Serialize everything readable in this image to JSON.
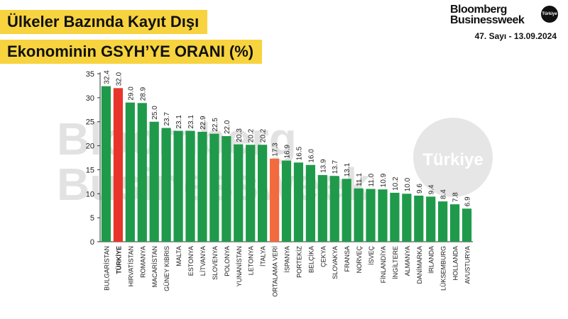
{
  "header": {
    "title_line1": "Ülkeler Bazında Kayıt Dışı",
    "title_line2": "Ekonominin GSYH’YE ORANI (%)",
    "brand_line1": "Bloomberg",
    "brand_line2": "Businessweek",
    "brand_badge": "Türkiye",
    "issue": "47. Sayı - 13.09.2024"
  },
  "watermark": {
    "line1": "Bloomberg",
    "line2": "Businessweek",
    "badge": "Türkiye"
  },
  "colors": {
    "bar_default": "#1f9a4a",
    "bar_highlight_turkiye": "#e8352b",
    "bar_highlight_average": "#f26a3d",
    "title_background": "#f7d33f"
  },
  "chart_data": {
    "type": "bar",
    "ylim": [
      0,
      35
    ],
    "yticks": [
      0,
      5,
      10,
      15,
      20,
      25,
      30,
      35
    ],
    "grid": false,
    "categories": [
      "BULGARİSTAN",
      "TÜRKİYE",
      "HIRVATİSTAN",
      "ROMANYA",
      "MACARİSTAN",
      "GÜNEY KIBRIS",
      "MALTA",
      "ESTONYA",
      "LİTVANYA",
      "SLOVENYA",
      "POLONYA",
      "YUNANİSTAN",
      "LETONYA",
      "İTALYA",
      "ORTALAMA VERİ",
      "İSPANYA",
      "PORTEKİZ",
      "BELÇİKA",
      "ÇEKYA",
      "SLOVAKYA",
      "FRANSA",
      "NORVEÇ",
      "İSVEÇ",
      "FİNLANDİYA",
      "İNGİLTERE",
      "ALMANYA",
      "DANİMARKA",
      "İRLANDA",
      "LÜKSEMBURG",
      "HOLLANDA",
      "AVUSTURYA"
    ],
    "values": [
      32.4,
      32.0,
      29.0,
      28.9,
      25.0,
      23.7,
      23.1,
      23.1,
      22.9,
      22.5,
      22.0,
      20.3,
      20.2,
      20.2,
      17.3,
      16.9,
      16.5,
      16.0,
      13.9,
      13.7,
      13.1,
      11.1,
      11.0,
      10.9,
      10.2,
      10.0,
      9.6,
      9.4,
      8.4,
      7.8,
      6.9
    ],
    "value_labels": [
      "32.4",
      "32.0",
      "29.0",
      "28.9",
      "25.0",
      "23.7",
      "23.1",
      "23.1",
      "22.9",
      "22.5",
      "22.0",
      "20.3",
      "20.2",
      "20.2",
      "17.3",
      "16.9",
      "16.5",
      "16.0",
      "13.9",
      "13.7",
      "13.1",
      "11.1",
      "11.0",
      "10.9",
      "10.2",
      "10.0",
      "9.6",
      "9.4",
      "8.4",
      "7.8",
      "6.9"
    ],
    "highlight": {
      "TÜRKİYE": "bar_highlight_turkiye",
      "ORTALAMA VERİ": "bar_highlight_average"
    }
  }
}
